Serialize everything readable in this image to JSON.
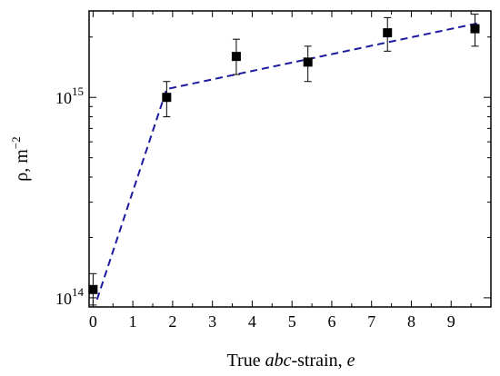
{
  "chart_data": {
    "type": "scatter",
    "xlabel_parts": [
      "True ",
      "abc",
      "-strain, ",
      "e"
    ],
    "ylabel_parts": [
      "ρ, m",
      "−2"
    ],
    "xlim": [
      -0.1,
      10
    ],
    "ylim": [
      90000000000000.0,
      2700000000000000.0
    ],
    "y_scale": "log",
    "x_ticks": [
      0,
      1,
      2,
      3,
      4,
      5,
      6,
      7,
      8,
      9
    ],
    "y_ticks": [
      {
        "value": 100000000000000.0,
        "base": "10",
        "exp": "14"
      },
      {
        "value": 1000000000000000.0,
        "base": "10",
        "exp": "15"
      }
    ],
    "grid": false,
    "points": [
      {
        "x": 0.0,
        "y": 110000000000000.0,
        "y_low": 92000000000000.0,
        "y_high": 132000000000000.0
      },
      {
        "x": 1.85,
        "y": 1000000000000000.0,
        "y_low": 800000000000000.0,
        "y_high": 1200000000000000.0
      },
      {
        "x": 3.6,
        "y": 1600000000000000.0,
        "y_low": 1300000000000000.0,
        "y_high": 1950000000000000.0
      },
      {
        "x": 5.4,
        "y": 1500000000000000.0,
        "y_low": 1200000000000000.0,
        "y_high": 1800000000000000.0
      },
      {
        "x": 7.4,
        "y": 2100000000000000.0,
        "y_low": 1700000000000000.0,
        "y_high": 2500000000000000.0
      },
      {
        "x": 9.6,
        "y": 2200000000000000.0,
        "y_low": 1800000000000000.0,
        "y_high": 2600000000000000.0
      }
    ],
    "fit_line": {
      "style": "dashed",
      "color": "#1a1aa0",
      "points": [
        [
          0.1,
          98000000000000.0
        ],
        [
          1.85,
          1100000000000000.0
        ],
        [
          9.7,
          2350000000000000.0
        ]
      ]
    }
  }
}
